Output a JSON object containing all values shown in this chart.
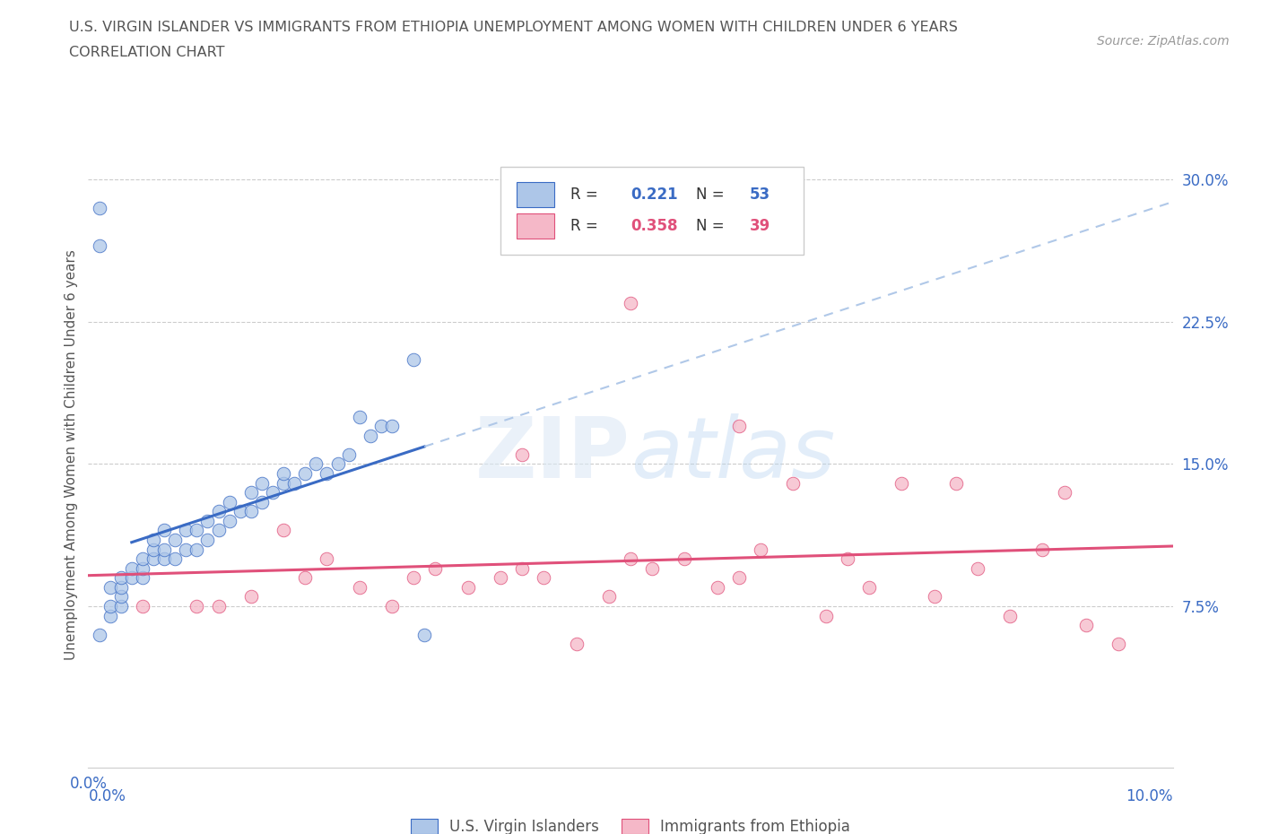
{
  "title_line1": "U.S. VIRGIN ISLANDER VS IMMIGRANTS FROM ETHIOPIA UNEMPLOYMENT AMONG WOMEN WITH CHILDREN UNDER 6 YEARS",
  "title_line2": "CORRELATION CHART",
  "source": "Source: ZipAtlas.com",
  "ylabel": "Unemployment Among Women with Children Under 6 years",
  "xlim": [
    0.0,
    0.1
  ],
  "ylim": [
    -0.01,
    0.32
  ],
  "xticks": [
    0.0,
    0.02,
    0.04,
    0.06,
    0.08,
    0.1
  ],
  "yticks_right": [
    0.0,
    0.075,
    0.15,
    0.225,
    0.3
  ],
  "R_blue": 0.221,
  "N_blue": 53,
  "R_pink": 0.358,
  "N_pink": 39,
  "blue_color": "#adc6e8",
  "pink_color": "#f5b8c8",
  "blue_line_color": "#3a6bc4",
  "pink_line_color": "#e0507a",
  "blue_dashed_color": "#b0c8e8",
  "legend_label_blue": "U.S. Virgin Islanders",
  "legend_label_pink": "Immigrants from Ethiopia",
  "blue_scatter_x": [
    0.001,
    0.001,
    0.001,
    0.002,
    0.002,
    0.002,
    0.003,
    0.003,
    0.003,
    0.003,
    0.004,
    0.004,
    0.005,
    0.005,
    0.005,
    0.006,
    0.006,
    0.006,
    0.007,
    0.007,
    0.007,
    0.008,
    0.008,
    0.009,
    0.009,
    0.01,
    0.01,
    0.011,
    0.011,
    0.012,
    0.012,
    0.013,
    0.013,
    0.014,
    0.015,
    0.015,
    0.016,
    0.016,
    0.017,
    0.018,
    0.018,
    0.019,
    0.02,
    0.021,
    0.022,
    0.023,
    0.024,
    0.025,
    0.026,
    0.027,
    0.028,
    0.03,
    0.031
  ],
  "blue_scatter_y": [
    0.285,
    0.265,
    0.06,
    0.07,
    0.075,
    0.085,
    0.075,
    0.08,
    0.085,
    0.09,
    0.09,
    0.095,
    0.09,
    0.095,
    0.1,
    0.1,
    0.105,
    0.11,
    0.1,
    0.105,
    0.115,
    0.1,
    0.11,
    0.105,
    0.115,
    0.105,
    0.115,
    0.11,
    0.12,
    0.115,
    0.125,
    0.12,
    0.13,
    0.125,
    0.125,
    0.135,
    0.13,
    0.14,
    0.135,
    0.14,
    0.145,
    0.14,
    0.145,
    0.15,
    0.145,
    0.15,
    0.155,
    0.175,
    0.165,
    0.17,
    0.17,
    0.205,
    0.06
  ],
  "pink_scatter_x": [
    0.005,
    0.01,
    0.012,
    0.015,
    0.018,
    0.02,
    0.022,
    0.025,
    0.028,
    0.03,
    0.032,
    0.035,
    0.038,
    0.04,
    0.042,
    0.045,
    0.048,
    0.05,
    0.052,
    0.055,
    0.058,
    0.06,
    0.062,
    0.065,
    0.068,
    0.07,
    0.072,
    0.075,
    0.078,
    0.08,
    0.082,
    0.085,
    0.088,
    0.09,
    0.092,
    0.095,
    0.05,
    0.04,
    0.06
  ],
  "pink_scatter_y": [
    0.075,
    0.075,
    0.075,
    0.08,
    0.115,
    0.09,
    0.1,
    0.085,
    0.075,
    0.09,
    0.095,
    0.085,
    0.09,
    0.095,
    0.09,
    0.055,
    0.08,
    0.1,
    0.095,
    0.1,
    0.085,
    0.09,
    0.105,
    0.14,
    0.07,
    0.1,
    0.085,
    0.14,
    0.08,
    0.14,
    0.095,
    0.07,
    0.105,
    0.135,
    0.065,
    0.055,
    0.235,
    0.155,
    0.17
  ]
}
